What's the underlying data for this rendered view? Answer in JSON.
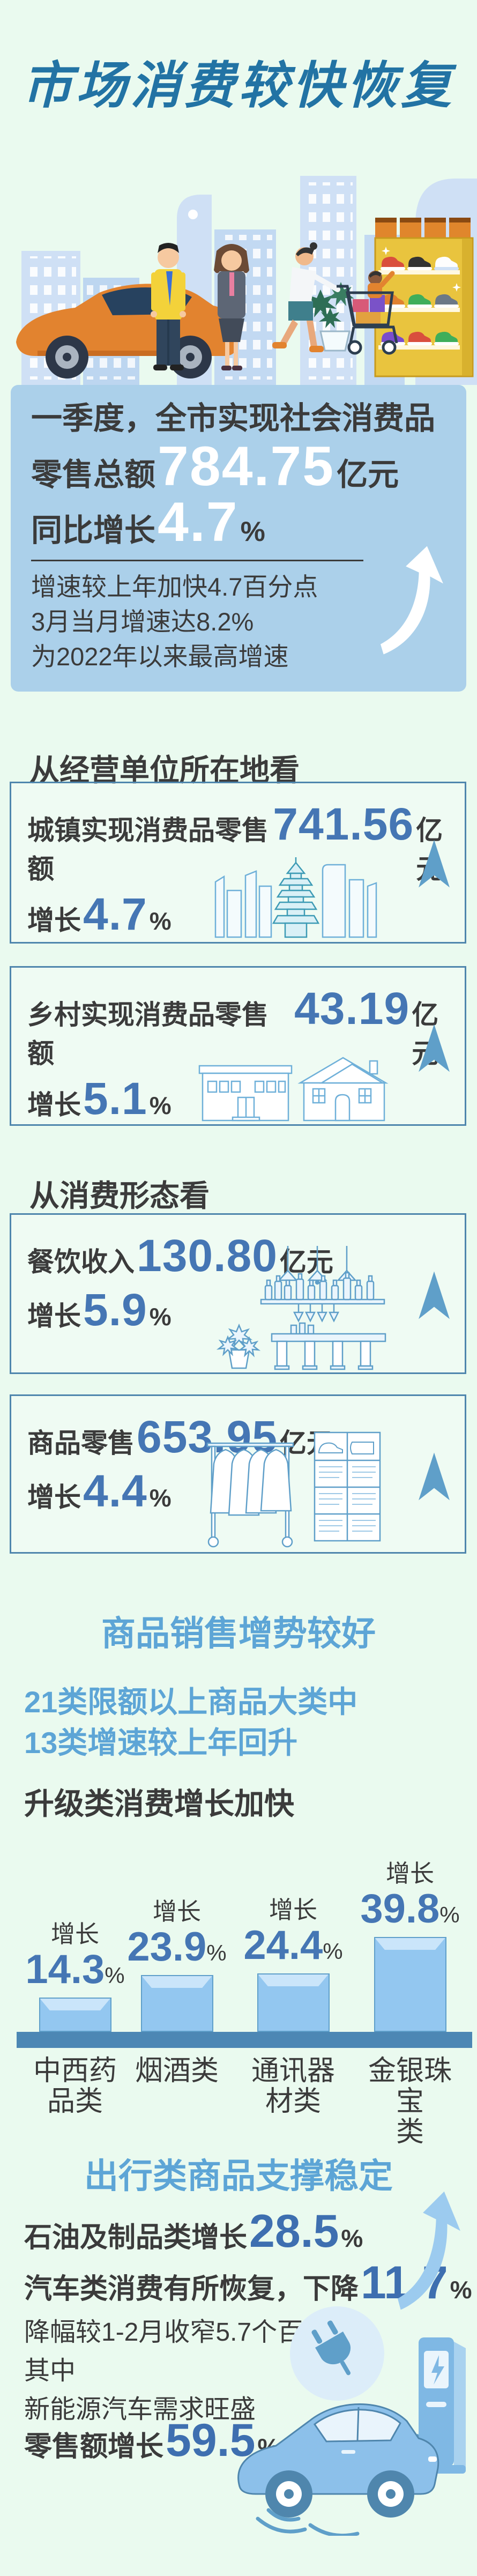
{
  "page": {
    "title": "市场消费较快恢复"
  },
  "hero": {
    "line1": "一季度，全市实现社会消费品",
    "line2_prefix": "零售总额",
    "line2_value": "784.75",
    "line2_unit": "亿元",
    "line3_prefix": "同比增长",
    "line3_value": "4.7",
    "line3_unit": "%",
    "note1": "增速较上年加快4.7百分点",
    "note2": "3月当月增速达8.2%",
    "note3": "为2022年以来最高增速"
  },
  "section_location": {
    "heading": "从经营单位所在地看",
    "boxes": [
      {
        "label": "城镇实现消费品零售额",
        "value": "741.56",
        "unit": "亿元",
        "growth_label": "增长",
        "growth_value": "4.7",
        "growth_unit": "%"
      },
      {
        "label": "乡村实现消费品零售额",
        "value": "43.19",
        "unit": "亿元",
        "growth_label": "增长",
        "growth_value": "5.1",
        "growth_unit": "%"
      }
    ]
  },
  "section_form": {
    "heading": "从消费形态看",
    "boxes": [
      {
        "label": "餐饮收入",
        "value": "130.80",
        "unit": "亿元",
        "growth_label": "增长",
        "growth_value": "5.9",
        "growth_unit": "%"
      },
      {
        "label": "商品零售",
        "value": "653.95",
        "unit": "亿元",
        "growth_label": "增长",
        "growth_value": "4.4",
        "growth_unit": "%"
      }
    ]
  },
  "section_goods": {
    "heading": "商品销售增势较好",
    "line1": "21类限额以上商品大类中",
    "line2": "13类增速较上年回升",
    "subheading": "升级类消费增长加快"
  },
  "chart_data": {
    "type": "bar",
    "title": "升级类消费增长加快",
    "categories": [
      "中西药品类",
      "烟酒类",
      "通讯器材类",
      "金银珠宝类"
    ],
    "values": [
      14.3,
      23.9,
      24.4,
      39.8
    ],
    "growth_label": "增长",
    "unit": "%",
    "ylim": [
      0,
      45
    ],
    "legend": "none",
    "grid": false,
    "bars": [
      {
        "line1": "中西药",
        "line2": "品类",
        "value": "14.3"
      },
      {
        "line1": "烟酒类",
        "line2": "",
        "value": "23.9"
      },
      {
        "line1": "通讯器",
        "line2": "材类",
        "value": "24.4"
      },
      {
        "line1": "金银珠宝",
        "line2": "类",
        "value": "39.8"
      }
    ]
  },
  "section_travel": {
    "heading": "出行类商品支撑稳定",
    "line1_prefix": "石油及制品类增长",
    "line1_value": "28.5",
    "line1_unit": "%",
    "line2_prefix": "汽车类消费有所恢复，下降",
    "line2_value": "11.7",
    "line2_unit": "%",
    "note1": "降幅较1-2月收窄5.7个百分点",
    "note2": "其中",
    "note3": "新能源汽车需求旺盛",
    "line3_prefix": "零售额增长",
    "line3_value": "59.5",
    "line3_unit": "%"
  },
  "colors": {
    "page_bg": "#eafaef",
    "title_blue": "#2273a4",
    "card_bg": "#abd0ea",
    "dark_text": "#3b3b3b",
    "number_blue": "#4576b4",
    "heading_light_blue": "#5da5d6",
    "box_border": "#4f86ad",
    "arrow_blue": "#5f9fc9",
    "bar_fill": "#93c7f0",
    "bar_bevel": "#cae5fa",
    "baseline": "#4c87b4"
  }
}
